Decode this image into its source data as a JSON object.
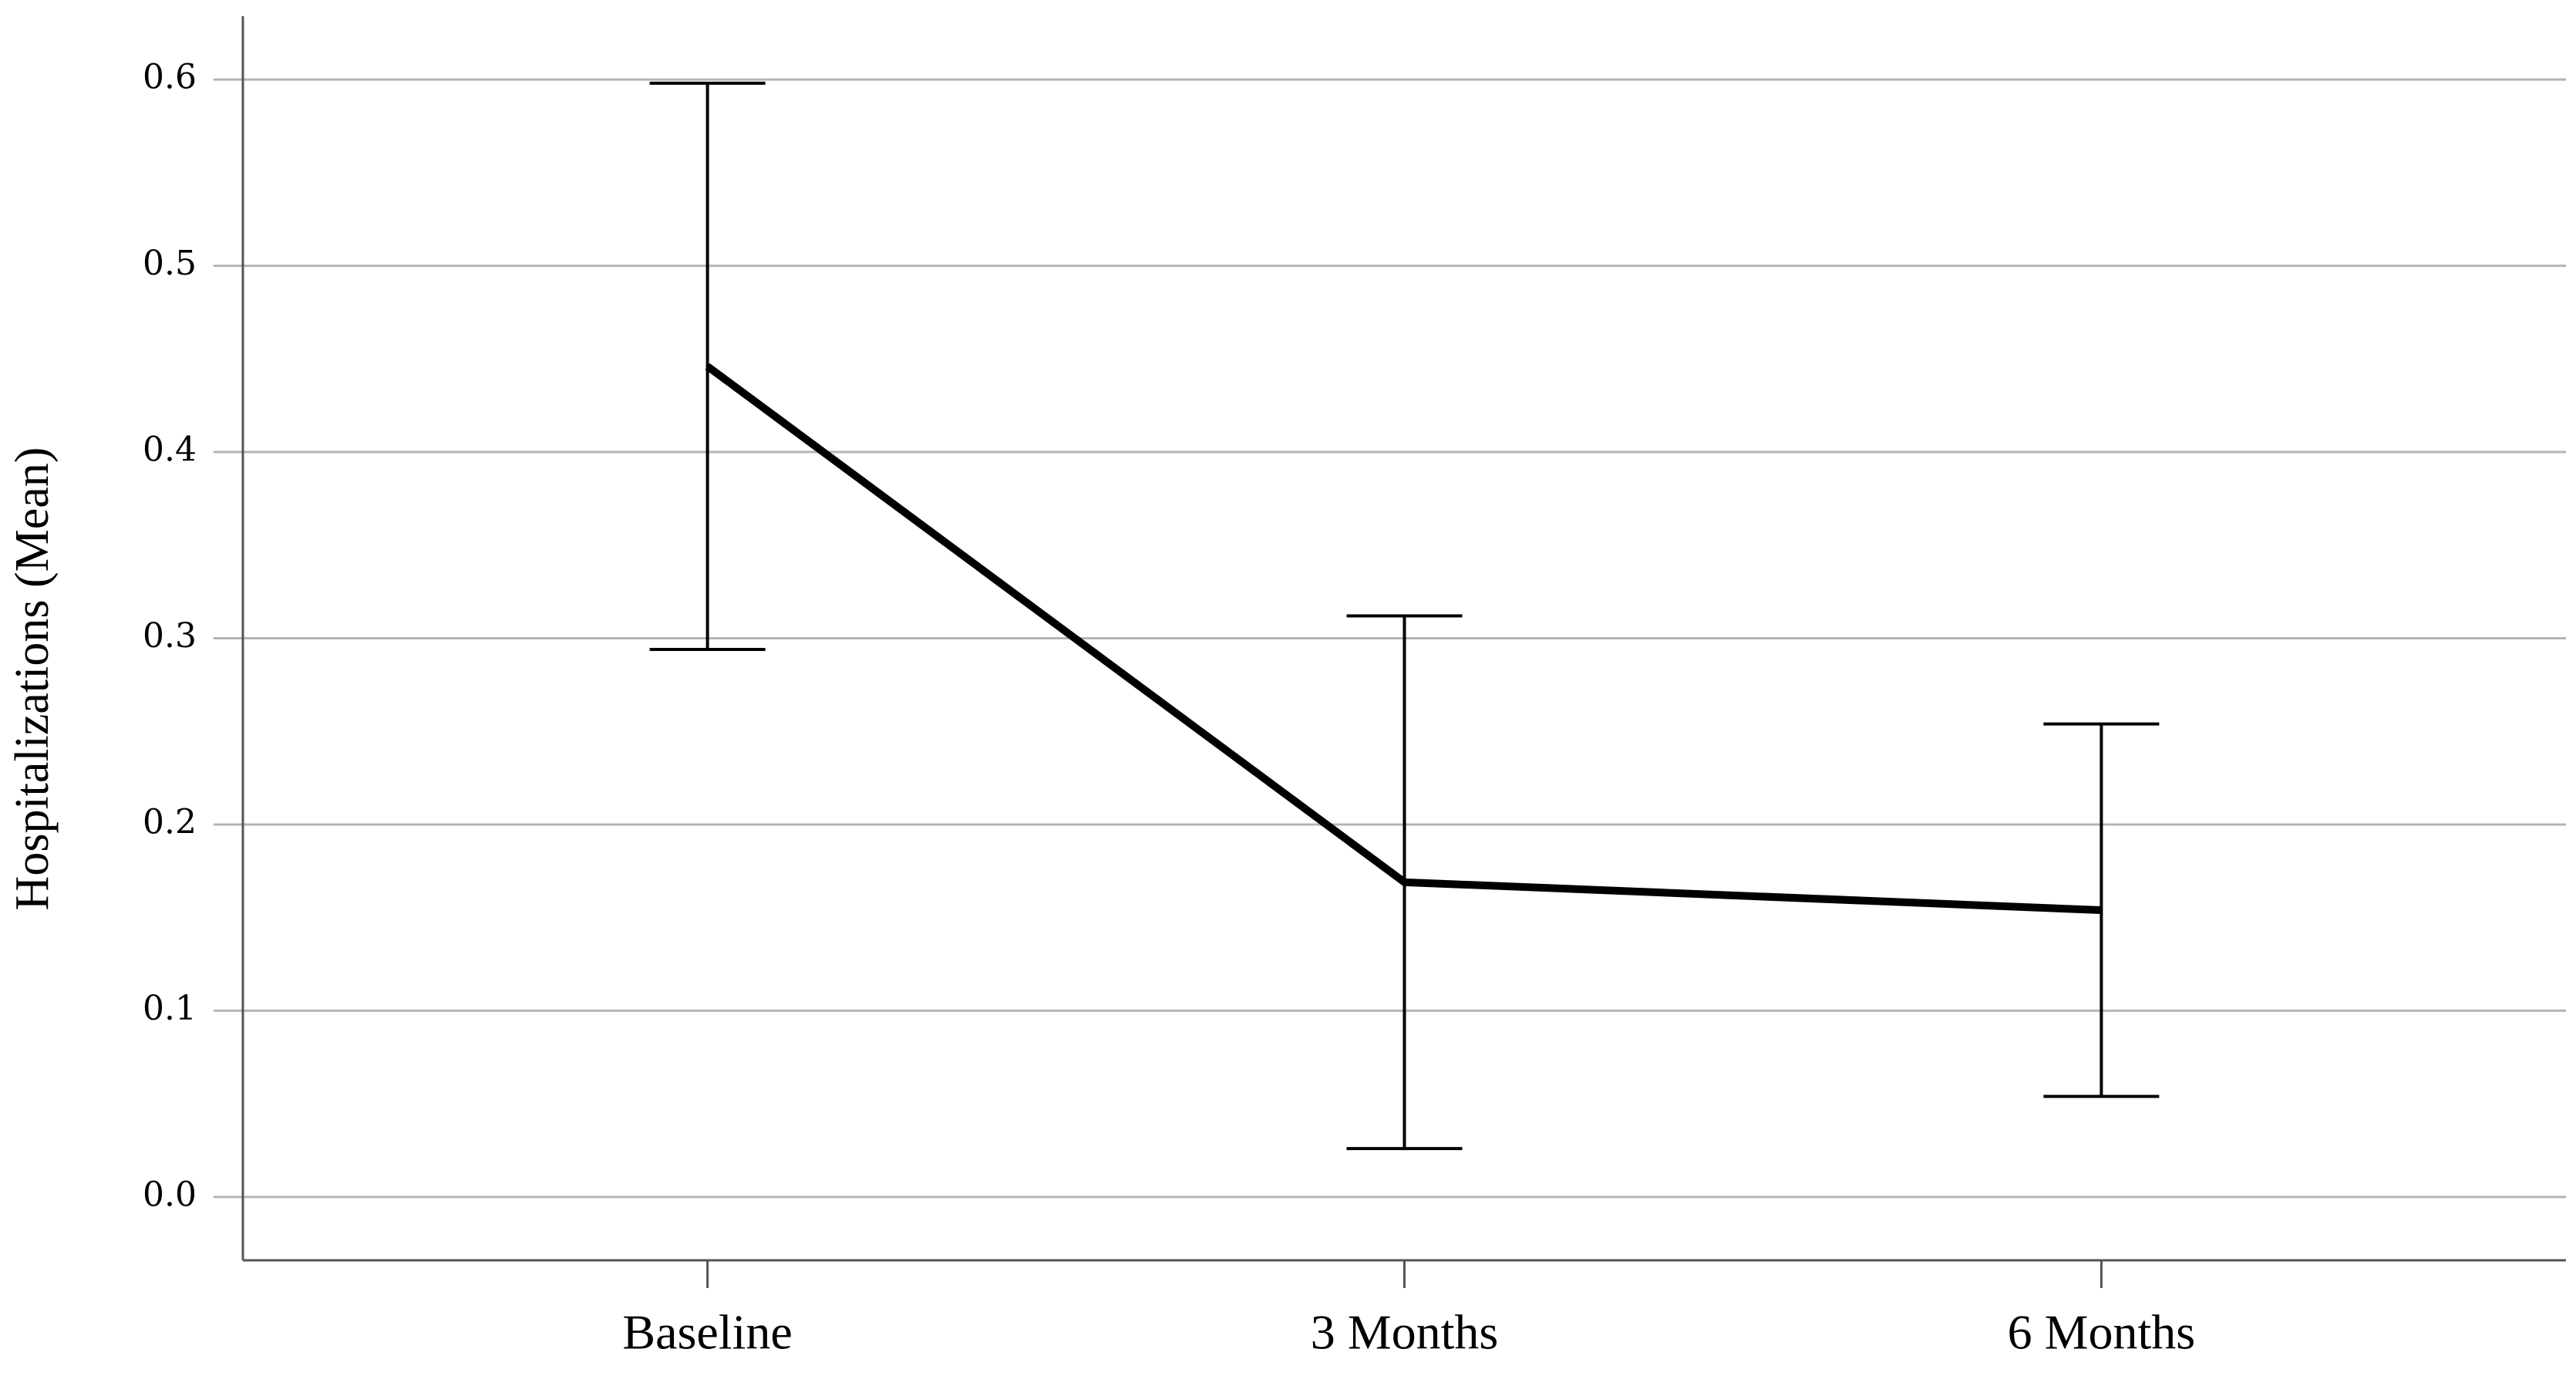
{
  "chart_data": {
    "type": "line",
    "y_label": "Hospitalizations (Mean)",
    "categories": [
      "Baseline",
      "3 Months",
      "6 Months"
    ],
    "values": [
      0.446,
      0.169,
      0.154
    ],
    "errors": [
      0.152,
      0.143,
      0.1
    ],
    "color": "#000000",
    "ylim": [
      -0.034,
      0.634
    ],
    "yticks": [
      {
        "value": 0,
        "label": "0.0"
      },
      0.1,
      0.2,
      0.3,
      0.4,
      0.5,
      0.6
    ],
    "grid": true
  }
}
